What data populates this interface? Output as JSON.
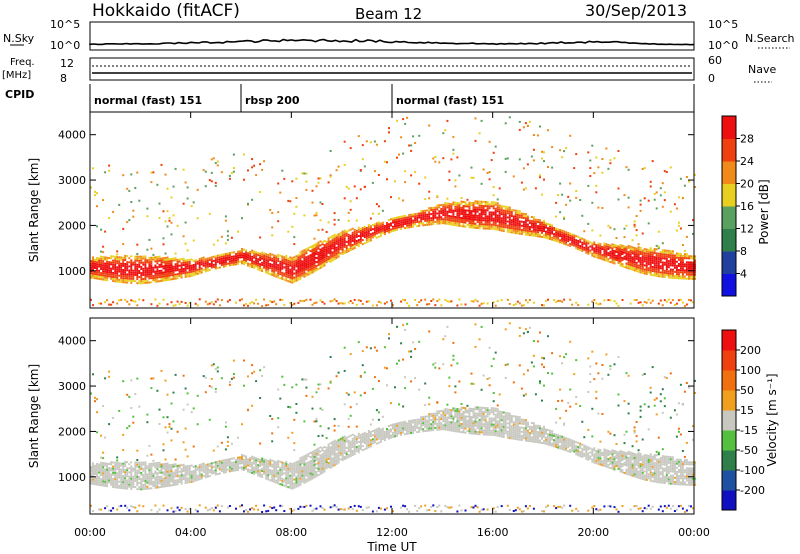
{
  "header": {
    "station": "Hokkaido (fitACF)",
    "beam": "Beam 12",
    "date": "30/Sep/2013"
  },
  "top_panels": {
    "nsky_label": "N.Sky",
    "nsky_ticks": [
      "10^5",
      "10^0"
    ],
    "nsearch_label": "N.Search",
    "nsearch_ticks": [
      "10^5",
      "10^0"
    ],
    "freq_label": "Freq.",
    "freq_unit": "[MHz]",
    "freq_ticks": [
      "12",
      "8"
    ],
    "nave_label": "Nave",
    "nave_ticks": [
      "60",
      "0"
    ],
    "cpid_label": "CPID"
  },
  "cpid_segments": [
    {
      "label": "normal (fast) 151",
      "start_hour": 0,
      "end_hour": 6
    },
    {
      "label": "rbsp 200",
      "start_hour": 6,
      "end_hour": 12
    },
    {
      "label": "normal (fast) 151",
      "start_hour": 12,
      "end_hour": 24
    }
  ],
  "chart_data": [
    {
      "type": "heatmap",
      "panel": "power",
      "ylabel": "Slant Range [km]",
      "xlabel": "Time UT",
      "ylim": [
        180,
        4500
      ],
      "xlim": [
        0,
        24
      ],
      "y_ticks": [
        "1000",
        "2000",
        "3000",
        "4000"
      ],
      "x_ticks": [
        "00:00",
        "04:00",
        "08:00",
        "12:00",
        "16:00",
        "20:00",
        "00:00"
      ],
      "colorbar": {
        "label": "Power [dB]",
        "ticks": [
          "4",
          "8",
          "12",
          "16",
          "20",
          "24",
          "28"
        ],
        "colors": [
          "#1010e0",
          "#2040a0",
          "#2f7f4a",
          "#5aa060",
          "#e8d020",
          "#f08a1a",
          "#f04010",
          "#ee1010"
        ]
      },
      "bands": [
        {
          "name": "main_echo",
          "points": [
            [
              0,
              1050
            ],
            [
              2,
              1000
            ],
            [
              4,
              1050
            ],
            [
              6,
              1300
            ],
            [
              8,
              1000
            ],
            [
              10,
              1600
            ],
            [
              12,
              2000
            ],
            [
              14,
              2250
            ],
            [
              16,
              2200
            ],
            [
              18,
              1900
            ],
            [
              20,
              1450
            ],
            [
              22,
              1200
            ],
            [
              24,
              1050
            ]
          ]
        }
      ]
    },
    {
      "type": "heatmap",
      "panel": "velocity",
      "ylabel": "Slant Range [km]",
      "xlabel": "Time UT",
      "ylim": [
        180,
        4500
      ],
      "xlim": [
        0,
        24
      ],
      "y_ticks": [
        "1000",
        "2000",
        "3000",
        "4000"
      ],
      "x_ticks": [
        "00:00",
        "04:00",
        "08:00",
        "12:00",
        "16:00",
        "20:00",
        "00:00"
      ],
      "colorbar": {
        "label": "Velocity [m s⁻¹]",
        "ticks": [
          "200",
          "100",
          "50",
          "15",
          "-15",
          "-50",
          "-100",
          "-200"
        ],
        "colors": [
          "#1010c0",
          "#2050a0",
          "#2f7f4a",
          "#55c040",
          "#c8c8c0",
          "#f0a020",
          "#f07010",
          "#f04010",
          "#ee1010"
        ]
      }
    }
  ]
}
